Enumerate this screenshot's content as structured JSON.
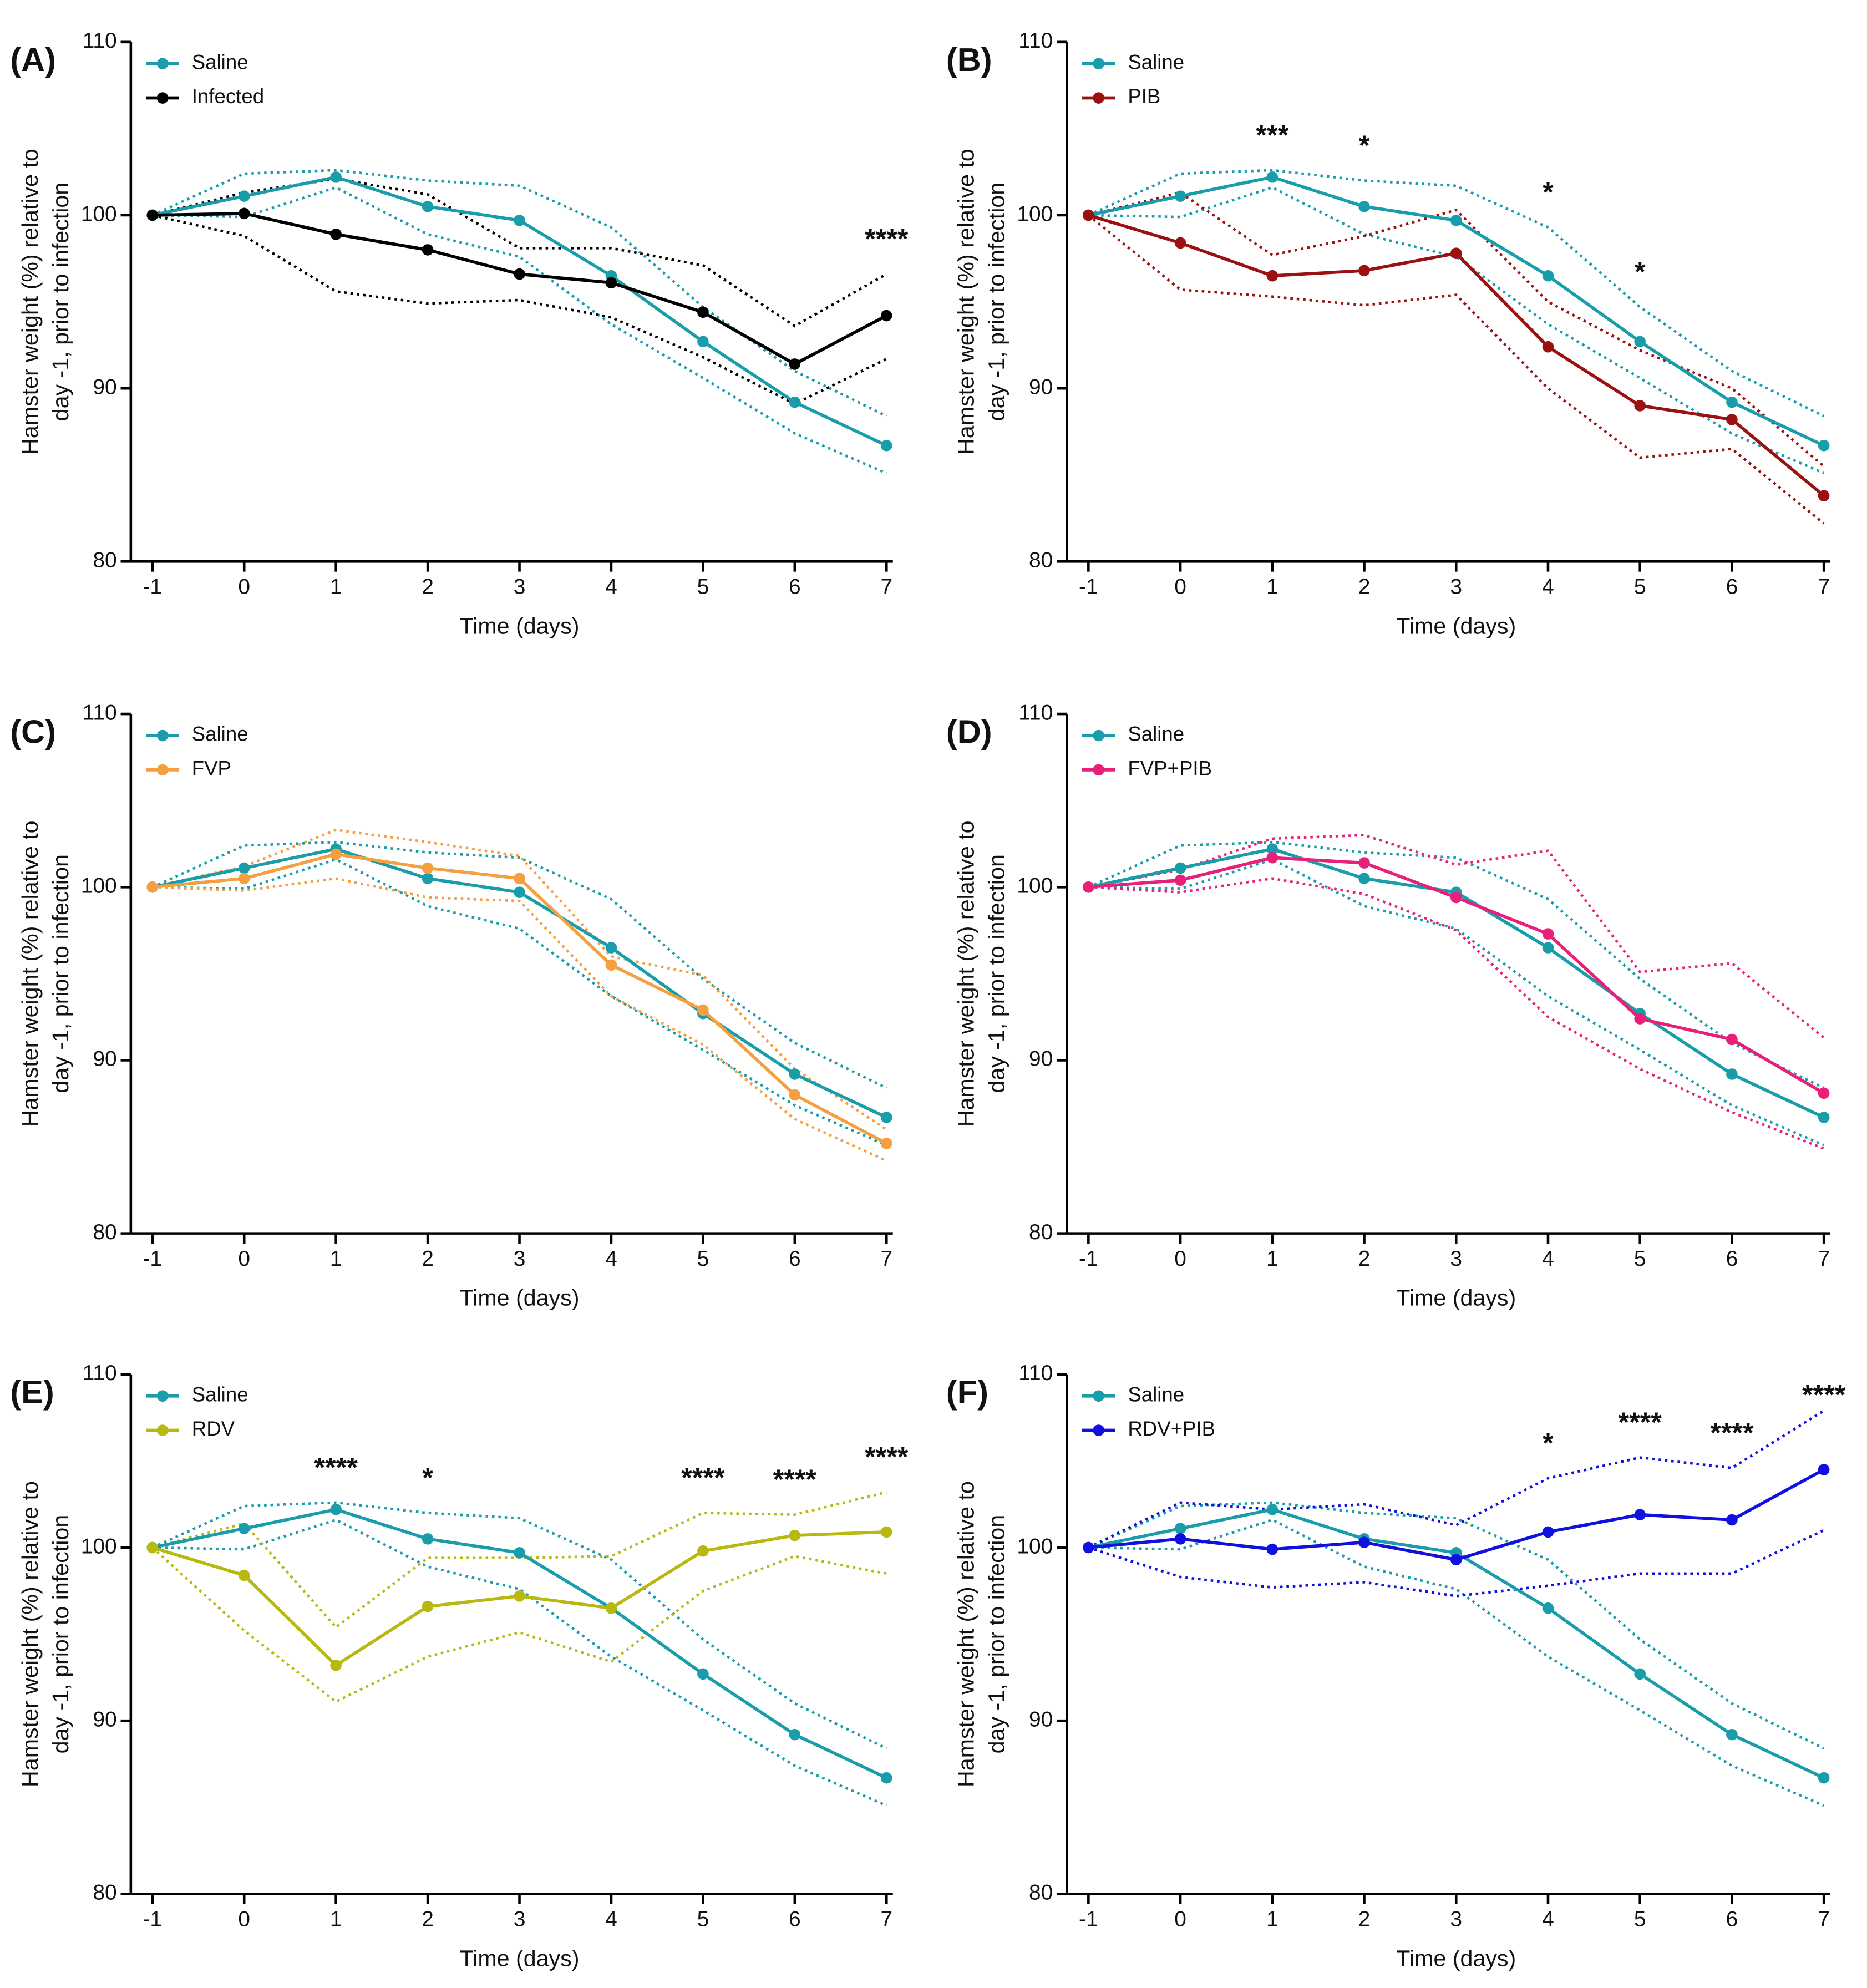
{
  "chart_data": [
    {
      "type": "line",
      "panel_label": "(A)",
      "xlabel": "Time (days)",
      "ylabel": [
        "Hamster weight (%) relative to",
        "day -1, prior to infection"
      ],
      "x": [
        -1,
        0,
        1,
        2,
        3,
        4,
        5,
        6,
        7
      ],
      "xlim": [
        -1,
        7
      ],
      "xticks": [
        -1,
        0,
        1,
        2,
        3,
        4,
        5,
        6,
        7
      ],
      "ylim": [
        80,
        110
      ],
      "yticks": [
        80,
        90,
        100,
        110
      ],
      "series": [
        {
          "name": "Saline",
          "color": "#1a9dab",
          "values": [
            100,
            101.1,
            102.2,
            100.5,
            99.7,
            96.5,
            92.7,
            89.2,
            86.7
          ],
          "upper": [
            100,
            102.4,
            102.6,
            102.0,
            101.7,
            99.3,
            94.7,
            91.0,
            88.4
          ],
          "lower": [
            100,
            99.9,
            101.6,
            98.9,
            97.6,
            93.7,
            90.6,
            87.4,
            85.1
          ]
        },
        {
          "name": "Infected",
          "color": "#000000",
          "values": [
            100,
            100.1,
            98.9,
            98.0,
            96.6,
            96.1,
            94.4,
            91.4,
            94.2
          ],
          "upper": [
            100,
            101.3,
            102.1,
            101.2,
            98.1,
            98.1,
            97.1,
            93.6,
            96.6
          ],
          "lower": [
            100,
            98.8,
            95.6,
            94.9,
            95.1,
            94.1,
            91.8,
            89.1,
            91.7
          ]
        }
      ],
      "annotations": [
        {
          "x": 7,
          "label": "****"
        }
      ]
    },
    {
      "type": "line",
      "panel_label": "(B)",
      "xlabel": "Time (days)",
      "ylabel": [
        "Hamster weight (%) relative to",
        "day -1, prior to infection"
      ],
      "x": [
        -1,
        0,
        1,
        2,
        3,
        4,
        5,
        6,
        7
      ],
      "xlim": [
        -1,
        7
      ],
      "xticks": [
        -1,
        0,
        1,
        2,
        3,
        4,
        5,
        6,
        7
      ],
      "ylim": [
        80,
        110
      ],
      "yticks": [
        80,
        90,
        100,
        110
      ],
      "series": [
        {
          "name": "Saline",
          "color": "#1a9dab",
          "values": [
            100,
            101.1,
            102.2,
            100.5,
            99.7,
            96.5,
            92.7,
            89.2,
            86.7
          ],
          "upper": [
            100,
            102.4,
            102.6,
            102.0,
            101.7,
            99.3,
            94.7,
            91.0,
            88.4
          ],
          "lower": [
            100,
            99.9,
            101.6,
            98.9,
            97.6,
            93.7,
            90.6,
            87.4,
            85.1
          ]
        },
        {
          "name": "PIB",
          "color": "#9b1010",
          "values": [
            100,
            98.4,
            96.5,
            96.8,
            97.8,
            92.4,
            89.0,
            88.2,
            83.8
          ],
          "upper": [
            100,
            101.3,
            97.7,
            98.8,
            100.3,
            95.0,
            92.2,
            90.0,
            85.5
          ],
          "lower": [
            100,
            95.7,
            95.3,
            94.8,
            95.4,
            90.0,
            86.0,
            86.5,
            82.2
          ]
        }
      ],
      "annotations": [
        {
          "x": 1,
          "label": "***"
        },
        {
          "x": 2,
          "label": "*"
        },
        {
          "x": 4,
          "label": "*"
        },
        {
          "x": 5,
          "label": "*"
        }
      ]
    },
    {
      "type": "line",
      "panel_label": "(C)",
      "xlabel": "Time (days)",
      "ylabel": [
        "Hamster weight (%) relative to",
        "day -1, prior to infection"
      ],
      "x": [
        -1,
        0,
        1,
        2,
        3,
        4,
        5,
        6,
        7
      ],
      "xlim": [
        -1,
        7
      ],
      "xticks": [
        -1,
        0,
        1,
        2,
        3,
        4,
        5,
        6,
        7
      ],
      "ylim": [
        80,
        110
      ],
      "yticks": [
        80,
        90,
        100,
        110
      ],
      "series": [
        {
          "name": "Saline",
          "color": "#1a9dab",
          "values": [
            100,
            101.1,
            102.2,
            100.5,
            99.7,
            96.5,
            92.7,
            89.2,
            86.7
          ],
          "upper": [
            100,
            102.4,
            102.6,
            102.0,
            101.7,
            99.3,
            94.7,
            91.0,
            88.4
          ],
          "lower": [
            100,
            99.9,
            101.6,
            98.9,
            97.6,
            93.7,
            90.6,
            87.4,
            85.1
          ]
        },
        {
          "name": "FVP",
          "color": "#f5a040",
          "values": [
            100,
            100.5,
            101.9,
            101.1,
            100.5,
            95.5,
            92.9,
            88.0,
            85.2
          ],
          "upper": [
            100,
            101.2,
            103.3,
            102.6,
            101.8,
            96.0,
            94.9,
            89.5,
            86.0
          ],
          "lower": [
            100,
            99.8,
            100.5,
            99.4,
            99.2,
            93.7,
            90.9,
            86.6,
            84.2
          ]
        }
      ],
      "annotations": []
    },
    {
      "type": "line",
      "panel_label": "(D)",
      "xlabel": "Time (days)",
      "ylabel": [
        "Hamster weight (%) relative to",
        "day -1, prior to infection"
      ],
      "x": [
        -1,
        0,
        1,
        2,
        3,
        4,
        5,
        6,
        7
      ],
      "xlim": [
        -1,
        7
      ],
      "xticks": [
        -1,
        0,
        1,
        2,
        3,
        4,
        5,
        6,
        7
      ],
      "ylim": [
        80,
        110
      ],
      "yticks": [
        80,
        90,
        100,
        110
      ],
      "series": [
        {
          "name": "Saline",
          "color": "#1a9dab",
          "values": [
            100,
            101.1,
            102.2,
            100.5,
            99.7,
            96.5,
            92.7,
            89.2,
            86.7
          ],
          "upper": [
            100,
            102.4,
            102.6,
            102.0,
            101.7,
            99.3,
            94.7,
            91.0,
            88.4
          ],
          "lower": [
            100,
            99.9,
            101.6,
            98.9,
            97.6,
            93.7,
            90.6,
            87.4,
            85.1
          ]
        },
        {
          "name": "FVP+PIB",
          "color": "#e8207a",
          "values": [
            100,
            100.4,
            101.7,
            101.4,
            99.4,
            97.3,
            92.4,
            91.2,
            88.1
          ],
          "upper": [
            100,
            101.0,
            102.8,
            103.0,
            101.3,
            102.1,
            95.1,
            95.6,
            91.3
          ],
          "lower": [
            100,
            99.7,
            100.5,
            99.6,
            97.5,
            92.5,
            89.5,
            87.0,
            84.9
          ]
        }
      ],
      "annotations": []
    },
    {
      "type": "line",
      "panel_label": "(E)",
      "xlabel": "Time (days)",
      "ylabel": [
        "Hamster weight (%) relative to",
        "day -1, prior to infection"
      ],
      "x": [
        -1,
        0,
        1,
        2,
        3,
        4,
        5,
        6,
        7
      ],
      "xlim": [
        -1,
        7
      ],
      "xticks": [
        -1,
        0,
        1,
        2,
        3,
        4,
        5,
        6,
        7
      ],
      "ylim": [
        80,
        110
      ],
      "yticks": [
        80,
        90,
        100,
        110
      ],
      "series": [
        {
          "name": "Saline",
          "color": "#1a9dab",
          "values": [
            100,
            101.1,
            102.2,
            100.5,
            99.7,
            96.5,
            92.7,
            89.2,
            86.7
          ],
          "upper": [
            100,
            102.4,
            102.6,
            102.0,
            101.7,
            99.3,
            94.7,
            91.0,
            88.4
          ],
          "lower": [
            100,
            99.9,
            101.6,
            98.9,
            97.6,
            93.7,
            90.6,
            87.4,
            85.1
          ]
        },
        {
          "name": "RDV",
          "color": "#b8b80f",
          "values": [
            100,
            98.4,
            93.2,
            96.6,
            97.2,
            96.5,
            99.8,
            100.7,
            100.9
          ],
          "upper": [
            100,
            101.4,
            95.4,
            99.4,
            99.4,
            99.5,
            102.0,
            101.9,
            103.2
          ],
          "lower": [
            100,
            95.2,
            91.1,
            93.7,
            95.1,
            93.4,
            97.5,
            99.5,
            98.5
          ]
        }
      ],
      "annotations": [
        {
          "x": 1,
          "label": "****"
        },
        {
          "x": 2,
          "label": "*"
        },
        {
          "x": 5,
          "label": "****"
        },
        {
          "x": 6,
          "label": "****"
        },
        {
          "x": 7,
          "label": "****"
        }
      ]
    },
    {
      "type": "line",
      "panel_label": "(F)",
      "xlabel": "Time (days)",
      "ylabel": [
        "Hamster weight (%) relative to",
        "day -1, prior to infection"
      ],
      "x": [
        -1,
        0,
        1,
        2,
        3,
        4,
        5,
        6,
        7
      ],
      "xlim": [
        -1,
        7
      ],
      "xticks": [
        -1,
        0,
        1,
        2,
        3,
        4,
        5,
        6,
        7
      ],
      "ylim": [
        80,
        110
      ],
      "yticks": [
        80,
        90,
        100,
        110
      ],
      "series": [
        {
          "name": "Saline",
          "color": "#1a9dab",
          "values": [
            100,
            101.1,
            102.2,
            100.5,
            99.7,
            96.5,
            92.7,
            89.2,
            86.7
          ],
          "upper": [
            100,
            102.4,
            102.6,
            102.0,
            101.7,
            99.3,
            94.7,
            91.0,
            88.4
          ],
          "lower": [
            100,
            99.9,
            101.6,
            98.9,
            97.6,
            93.7,
            90.6,
            87.4,
            85.1
          ]
        },
        {
          "name": "RDV+PIB",
          "color": "#1010e0",
          "values": [
            100,
            100.5,
            99.9,
            100.3,
            99.3,
            100.9,
            101.9,
            101.6,
            104.5
          ],
          "upper": [
            100,
            102.6,
            102.2,
            102.5,
            101.3,
            104.0,
            105.2,
            104.6,
            107.9
          ],
          "lower": [
            100,
            98.3,
            97.7,
            98.0,
            97.2,
            97.8,
            98.5,
            98.5,
            101.0
          ]
        }
      ],
      "annotations": [
        {
          "x": 4,
          "label": "*"
        },
        {
          "x": 5,
          "label": "****"
        },
        {
          "x": 6,
          "label": "****"
        },
        {
          "x": 7,
          "label": "****"
        }
      ]
    }
  ]
}
